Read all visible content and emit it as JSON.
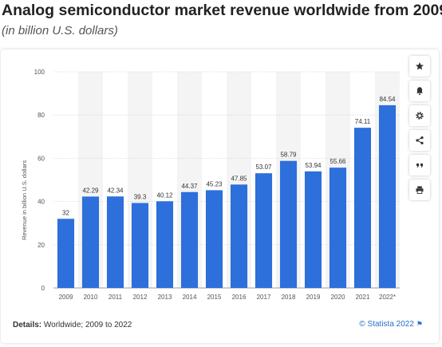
{
  "header": {
    "title": "Analog semiconductor market revenue worldwide from 2009",
    "subtitle": "(in billion U.S. dollars)"
  },
  "footer": {
    "details_label": "Details:",
    "details_text": " Worldwide; 2009 to 2022",
    "credit": "© Statista 2022",
    "flag_icon": "flag-icon"
  },
  "toolbar": {
    "icons": [
      "star-icon",
      "bell-icon",
      "gear-icon",
      "share-icon",
      "quote-icon",
      "print-icon"
    ]
  },
  "colors": {
    "bar": "#2d6fdb",
    "band": "#f4f4f4",
    "grid": "#d9d9d9",
    "credit": "#2a6dc9"
  },
  "chart_data": {
    "type": "bar",
    "categories": [
      "2009",
      "2010",
      "2011",
      "2012",
      "2013",
      "2014",
      "2015",
      "2016",
      "2017",
      "2018",
      "2019",
      "2020",
      "2021",
      "2022*"
    ],
    "values": [
      32,
      42.29,
      42.34,
      39.3,
      40.12,
      44.37,
      45.23,
      47.85,
      53.07,
      58.79,
      53.94,
      55.66,
      74.11,
      84.54
    ],
    "value_labels": [
      "32",
      "42.29",
      "42.34",
      "39.3",
      "40.12",
      "44.37",
      "45.23",
      "47.85",
      "53.07",
      "58.79",
      "53.94",
      "55.66",
      "74.11",
      "84.54"
    ],
    "title": "Analog semiconductor market revenue worldwide from 2009",
    "xlabel": "",
    "ylabel": "Revenue in billion U.S. dollars",
    "ylim": [
      0,
      100
    ],
    "yticks": [
      0,
      20,
      40,
      60,
      80,
      100
    ],
    "grid": true,
    "legend": "none"
  }
}
